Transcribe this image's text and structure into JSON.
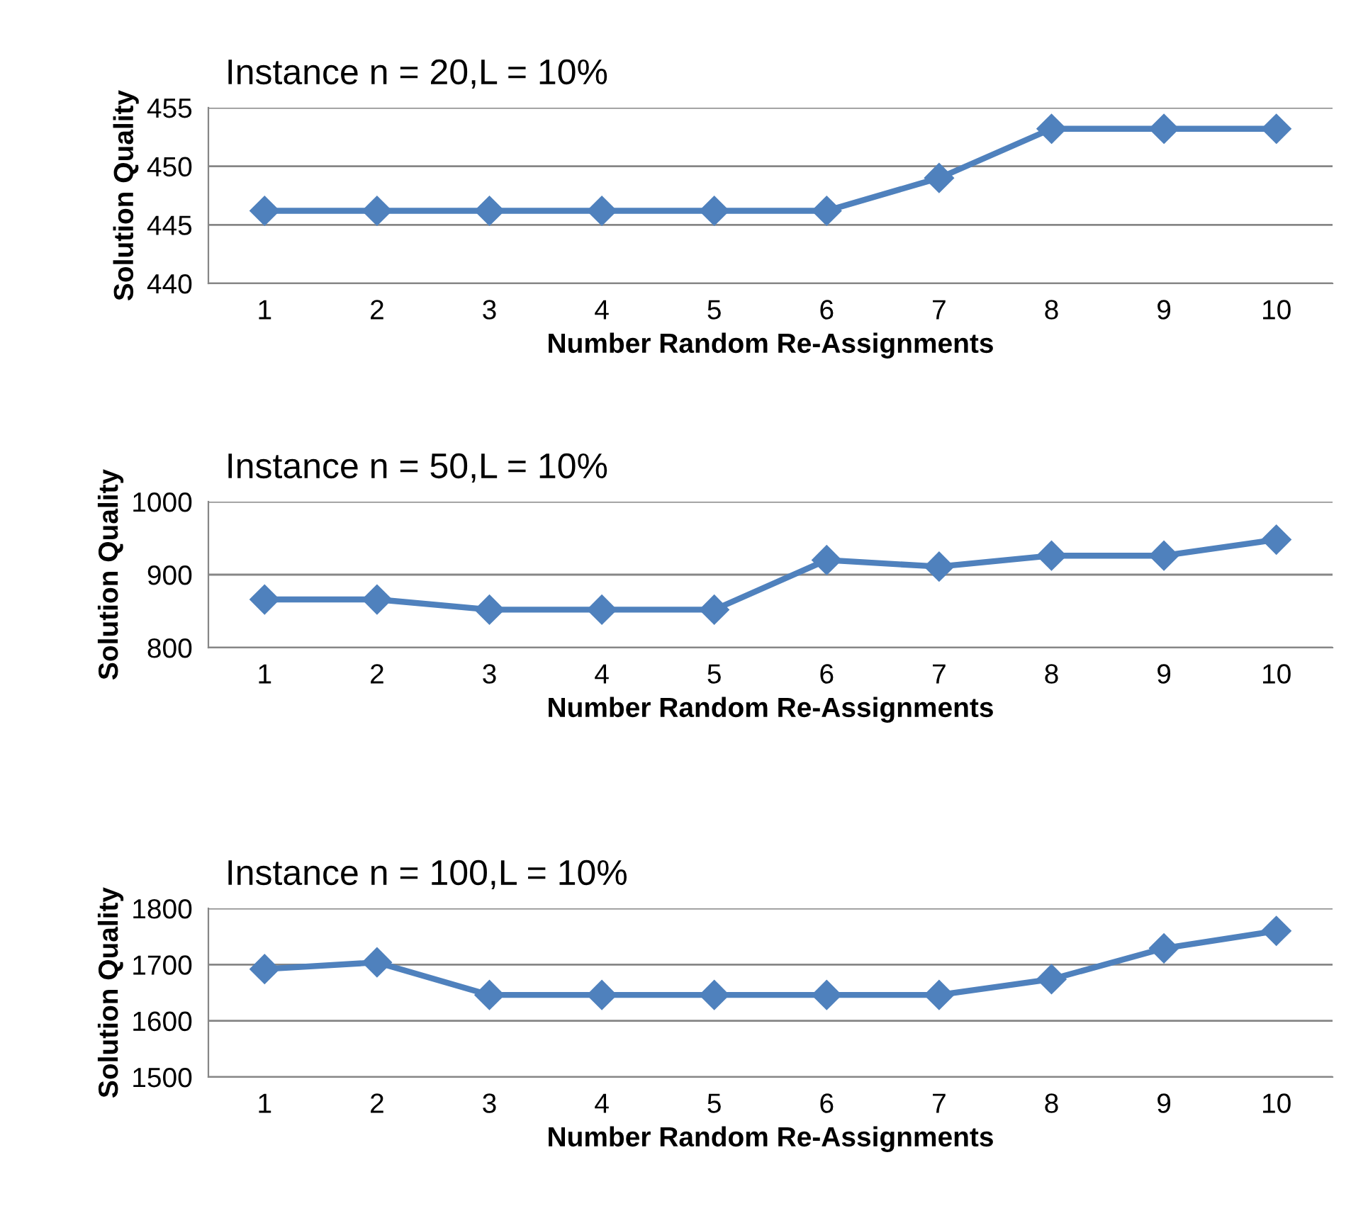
{
  "chart_data": [
    {
      "type": "line",
      "title": "Instance n = 20,L = 10%",
      "xlabel": "Number Random Re-Assignments",
      "ylabel": "Solution Quality",
      "categories": [
        "1",
        "2",
        "3",
        "4",
        "5",
        "6",
        "7",
        "8",
        "9",
        "10"
      ],
      "series": [
        {
          "color": "#4f81bd",
          "values": [
            446.2,
            446.2,
            446.2,
            446.2,
            446.2,
            446.2,
            449,
            453.2,
            453.2,
            453.2
          ]
        }
      ],
      "ylim": [
        440,
        455
      ],
      "yticks": [
        440,
        445,
        450,
        455
      ],
      "grid": "y",
      "marker": "diamond",
      "line_style": "solid"
    },
    {
      "type": "line",
      "title": "Instance n = 50,L = 10%",
      "xlabel": "Number Random Re-Assignments",
      "ylabel": "Solution Quality",
      "categories": [
        "1",
        "2",
        "3",
        "4",
        "5",
        "6",
        "7",
        "8",
        "9",
        "10"
      ],
      "series": [
        {
          "color": "#4f81bd",
          "values": [
            866,
            866,
            852,
            852,
            852,
            920,
            911,
            926,
            926,
            948
          ]
        }
      ],
      "ylim": [
        800,
        1000
      ],
      "yticks": [
        800,
        900,
        1000
      ],
      "grid": "y",
      "marker": "diamond",
      "line_style": "solid"
    },
    {
      "type": "line",
      "title": "Instance n = 100,L = 10%",
      "xlabel": "Number Random Re-Assignments",
      "ylabel": "Solution Quality",
      "categories": [
        "1",
        "2",
        "3",
        "4",
        "5",
        "6",
        "7",
        "8",
        "9",
        "10"
      ],
      "series": [
        {
          "color": "#4f81bd",
          "values": [
            1692,
            1704,
            1646,
            1646,
            1646,
            1646,
            1646,
            1674,
            1729,
            1760
          ]
        }
      ],
      "ylim": [
        1500,
        1800
      ],
      "yticks": [
        1500,
        1600,
        1700,
        1800
      ],
      "grid": "y",
      "marker": "diamond",
      "line_style": "solid"
    }
  ]
}
